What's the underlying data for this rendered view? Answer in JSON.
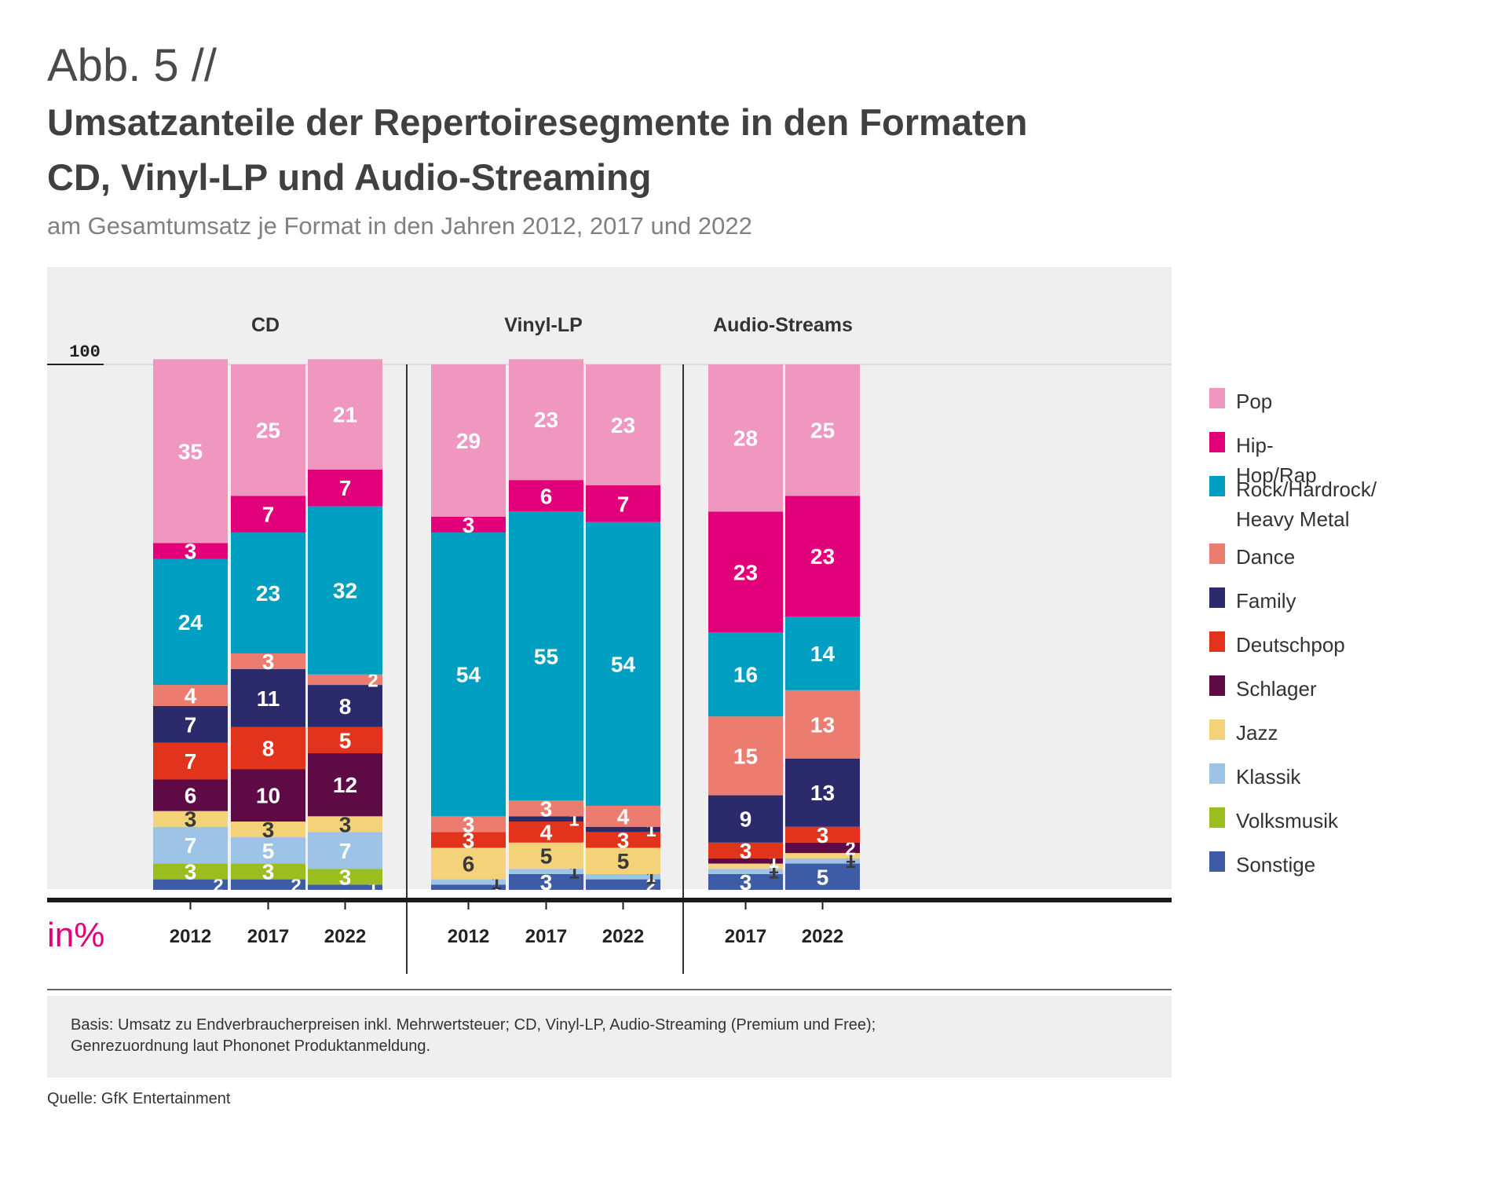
{
  "header": {
    "figure_label": "Abb. 5 //",
    "title_line1": "Umsatzanteile der Repertoiresegmente in den Formaten",
    "title_line2": "CD, Vinyl-LP und Audio-Streaming",
    "subtitle": "am Gesamtumsatz je Format in den Jahren 2012, 2017 und 2022"
  },
  "footnote": {
    "line1": "Basis: Umsatz zu Endverbraucherpreisen inkl. Mehrwertsteuer; CD, Vinyl-LP, Audio-Streaming (Premium und Free);",
    "line2": "Genrezuordnung laut Phononet Produktanmeldung."
  },
  "source": "Quelle: GfK Entertainment",
  "chart_data": {
    "type": "bar",
    "stacked": true,
    "unit_label": "in%",
    "ylim": [
      0,
      100
    ],
    "y_tick_label": "100",
    "groups": [
      {
        "name": "CD",
        "years": [
          "2012",
          "2017",
          "2022"
        ]
      },
      {
        "name": "Vinyl-LP",
        "years": [
          "2012",
          "2017",
          "2022"
        ]
      },
      {
        "name": "Audio-Streams",
        "years": [
          "2017",
          "2022"
        ]
      }
    ],
    "categories": [
      "CD 2012",
      "CD 2017",
      "CD 2022",
      "Vinyl-LP 2012",
      "Vinyl-LP 2017",
      "Vinyl-LP 2022",
      "Audio-Streams 2017",
      "Audio-Streams 2022"
    ],
    "series": [
      {
        "name": "Sonstige",
        "color": "#3e5ba6",
        "values": [
          2,
          2,
          1,
          1,
          3,
          2,
          3,
          5
        ]
      },
      {
        "name": "Volksmusik",
        "color": "#9cbd1e",
        "values": [
          3,
          3,
          3,
          0,
          0,
          0,
          0,
          0
        ]
      },
      {
        "name": "Klassik",
        "color": "#9dc3e6",
        "values": [
          7,
          5,
          7,
          1,
          1,
          1,
          1,
          1
        ]
      },
      {
        "name": "Jazz",
        "color": "#f4d27a",
        "values": [
          3,
          3,
          3,
          6,
          5,
          5,
          1,
          1
        ]
      },
      {
        "name": "Schlager",
        "color": "#5e0a45",
        "values": [
          6,
          10,
          12,
          0,
          0,
          0,
          1,
          2
        ]
      },
      {
        "name": "Deutschpop",
        "color": "#e2341d",
        "values": [
          7,
          8,
          5,
          3,
          4,
          3,
          3,
          3
        ]
      },
      {
        "name": "Family",
        "color": "#2b2a6b",
        "values": [
          7,
          11,
          8,
          0,
          1,
          1,
          9,
          13
        ]
      },
      {
        "name": "Dance",
        "color": "#ec7b70",
        "values": [
          4,
          3,
          2,
          3,
          3,
          4,
          15,
          13
        ]
      },
      {
        "name": "Rock/Hardrock/ Heavy Metal",
        "color": "#009ec0",
        "values": [
          24,
          23,
          32,
          54,
          55,
          54,
          16,
          14
        ]
      },
      {
        "name": "Hip-Hop/Rap",
        "color": "#e2007a",
        "values": [
          3,
          7,
          7,
          3,
          6,
          7,
          23,
          23
        ]
      },
      {
        "name": "Pop",
        "color": "#f097c0",
        "values": [
          35,
          25,
          21,
          29,
          23,
          23,
          28,
          25
        ]
      }
    ],
    "legend": [
      {
        "label": "Pop",
        "color": "#f097c0"
      },
      {
        "label": "Hip-Hop/Rap",
        "color": "#e2007a"
      },
      {
        "label": "Rock/Hardrock/\nHeavy Metal",
        "color": "#009ec0"
      },
      {
        "label": "Dance",
        "color": "#ec7b70"
      },
      {
        "label": "Family",
        "color": "#2b2a6b"
      },
      {
        "label": "Deutschpop",
        "color": "#e2341d"
      },
      {
        "label": "Schlager",
        "color": "#5e0a45"
      },
      {
        "label": "Jazz",
        "color": "#f4d27a"
      },
      {
        "label": "Klassik",
        "color": "#9dc3e6"
      },
      {
        "label": "Volksmusik",
        "color": "#9cbd1e"
      },
      {
        "label": "Sonstige",
        "color": "#3e5ba6"
      }
    ],
    "legend_position": "right"
  }
}
